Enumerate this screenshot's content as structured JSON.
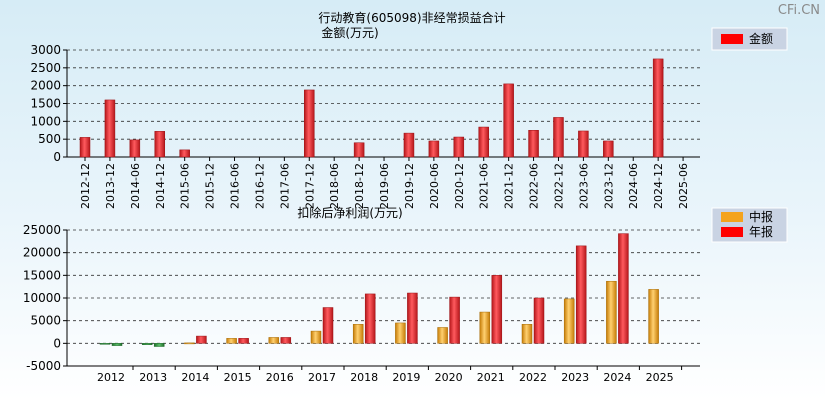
{
  "watermark": "CFi.CN",
  "charts": {
    "top": {
      "title": "行动教育(605098)非经常损益合计",
      "subtitle": "金额(万元)",
      "legend": "金额"
    },
    "bottom": {
      "title": "扣除后净利润(万元)",
      "legend_a": "中报",
      "legend_b": "年报"
    }
  },
  "chart_data": [
    {
      "type": "bar",
      "title": "行动教育(605098)非经常损益合计",
      "ylabel": "金额(万元)",
      "ylim": [
        0,
        3000
      ],
      "yticks": [
        0,
        500,
        1000,
        1500,
        2000,
        2500,
        3000
      ],
      "categories": [
        "2012-12",
        "2013-12",
        "2014-06",
        "2014-12",
        "2015-06",
        "2015-12",
        "2016-06",
        "2016-12",
        "2017-06",
        "2017-12",
        "2018-06",
        "2018-12",
        "2019-06",
        "2019-12",
        "2020-06",
        "2020-12",
        "2021-06",
        "2021-12",
        "2022-06",
        "2022-12",
        "2023-06",
        "2023-12",
        "2024-06",
        "2024-12",
        "2025-06"
      ],
      "series": [
        {
          "name": "金额",
          "color": "#e8292d",
          "values": [
            550,
            1600,
            480,
            720,
            200,
            0,
            0,
            0,
            0,
            1880,
            0,
            400,
            0,
            670,
            450,
            560,
            840,
            2050,
            750,
            1110,
            730,
            450,
            0,
            2750,
            0
          ]
        }
      ],
      "legend_position": "top-right",
      "grid": true
    },
    {
      "type": "bar",
      "title": "扣除后净利润(万元)",
      "ylim": [
        -5000,
        25000
      ],
      "yticks": [
        -5000,
        0,
        5000,
        10000,
        15000,
        20000,
        25000
      ],
      "categories": [
        "2012",
        "2013",
        "2014",
        "2015",
        "2016",
        "2017",
        "2018",
        "2019",
        "2020",
        "2021",
        "2022",
        "2023",
        "2024",
        "2025"
      ],
      "series": [
        {
          "name": "中报",
          "color": "#f4a31c",
          "values": [
            -200,
            -300,
            100,
            1100,
            1300,
            2700,
            4200,
            4500,
            3500,
            6900,
            4200,
            9800,
            13700,
            11900
          ]
        },
        {
          "name": "年报",
          "color": "#e8292d",
          "values": [
            -500,
            -700,
            1600,
            1100,
            1300,
            7900,
            10900,
            11100,
            10200,
            15000,
            10000,
            21500,
            24200,
            null
          ]
        }
      ],
      "legend_position": "top-right",
      "grid": true
    }
  ]
}
